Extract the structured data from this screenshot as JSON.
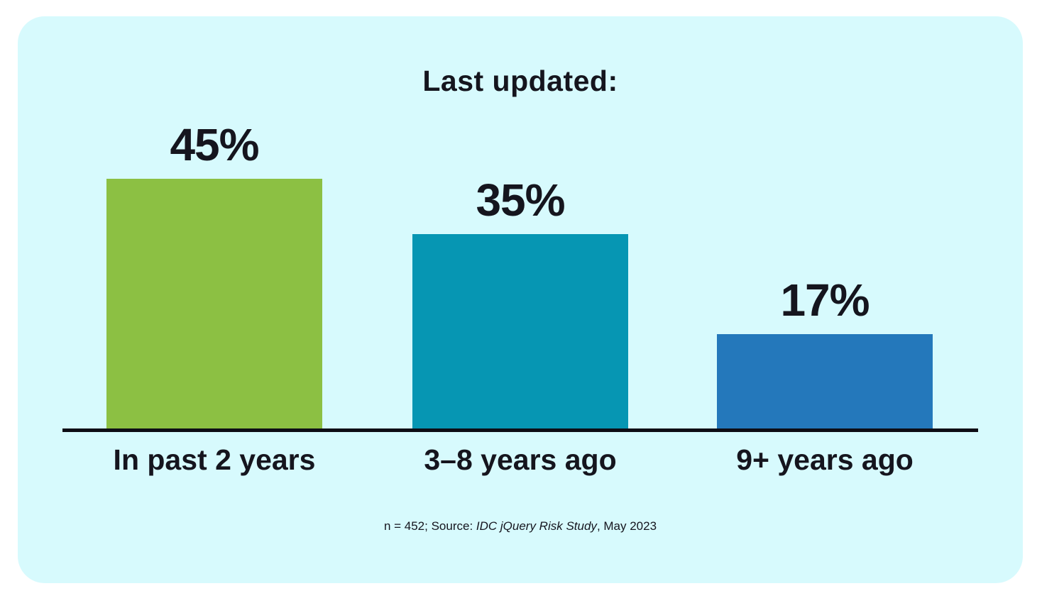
{
  "colors": {
    "page_background": "#ffffff",
    "card_background": "#d7fafd",
    "text": "#15151e",
    "axis_line": "#0d0d15"
  },
  "chart_data": {
    "type": "bar",
    "title": "Last updated:",
    "categories": [
      "In past 2 years",
      "3–8 years ago",
      "9+ years ago"
    ],
    "values": [
      45,
      35,
      17
    ],
    "value_labels": [
      "45%",
      "35%",
      "17%"
    ],
    "bar_colors": [
      "#8cc043",
      "#0696b3",
      "#2478bb"
    ],
    "xlabel": "",
    "ylabel": "",
    "ylim": [
      0,
      45
    ],
    "grid": false,
    "legend": false,
    "value_label_format": "percent",
    "footnote": {
      "prefix": "n = 452; Source: ",
      "italic": "IDC jQuery Risk Study",
      "suffix": ", May 2023"
    }
  }
}
